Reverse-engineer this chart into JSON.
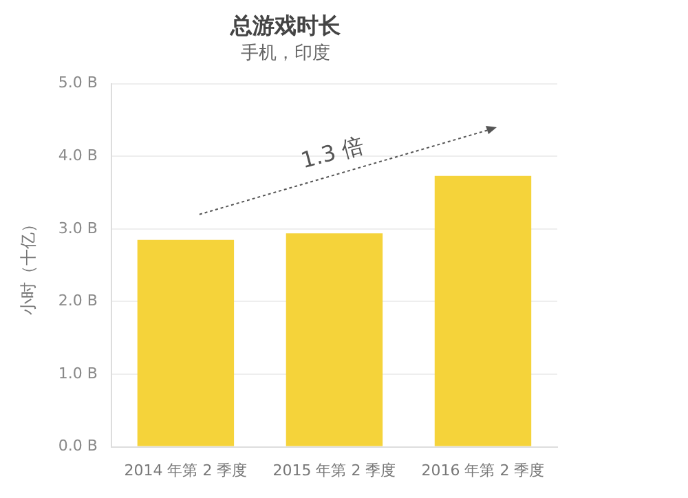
{
  "chart_data": {
    "type": "bar",
    "title": "总游戏时长",
    "subtitle": "手机，印度",
    "ylabel": "小时（十亿）",
    "categories": [
      "2014 年第 2 季度",
      "2015 年第 2 季度",
      "2016 年第 2 季度"
    ],
    "values": [
      2.85,
      2.94,
      3.73
    ],
    "color": "#f5d33a",
    "ylim": [
      0,
      5
    ],
    "yticks": [
      {
        "value": 0,
        "label": "0.0 B"
      },
      {
        "value": 1,
        "label": "1.0 B"
      },
      {
        "value": 2,
        "label": "2.0 B"
      },
      {
        "value": 3,
        "label": "3.0 B"
      },
      {
        "value": 4,
        "label": "4.0 B"
      },
      {
        "value": 5,
        "label": "5.0 B"
      }
    ],
    "grid": "y",
    "legend": false,
    "annotations": [
      "1.3 倍"
    ]
  }
}
